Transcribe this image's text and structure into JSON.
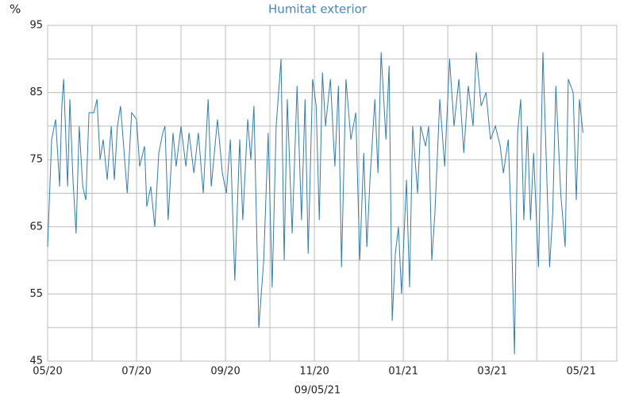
{
  "chart_data": {
    "type": "line",
    "title": "Humitat exterior",
    "y_label": "%",
    "x_label": "09/05/21",
    "series": [
      {
        "name": "Humitat exterior",
        "color": "#2f7db8",
        "x": [
          0,
          0.09,
          0.18,
          0.27,
          0.32,
          0.36,
          0.45,
          0.5,
          0.57,
          0.64,
          0.71,
          0.79,
          0.86,
          0.93,
          1.04,
          1.11,
          1.18,
          1.25,
          1.34,
          1.43,
          1.5,
          1.57,
          1.64,
          1.71,
          1.79,
          1.89,
          2,
          2.07,
          2.18,
          2.23,
          2.32,
          2.41,
          2.5,
          2.59,
          2.64,
          2.71,
          2.82,
          2.89,
          3,
          3.11,
          3.18,
          3.29,
          3.39,
          3.5,
          3.61,
          3.68,
          3.82,
          3.93,
          4.02,
          4.11,
          4.21,
          4.32,
          4.39,
          4.5,
          4.57,
          4.64,
          4.75,
          4.86,
          4.96,
          5.05,
          5.14,
          5.25,
          5.32,
          5.39,
          5.5,
          5.61,
          5.71,
          5.79,
          5.86,
          5.96,
          6.04,
          6.11,
          6.18,
          6.25,
          6.36,
          6.46,
          6.54,
          6.61,
          6.71,
          6.82,
          6.93,
          7.02,
          7.11,
          7.18,
          7.25,
          7.36,
          7.43,
          7.5,
          7.61,
          7.68,
          7.75,
          7.82,
          7.89,
          7.96,
          8.07,
          8.14,
          8.21,
          8.32,
          8.39,
          8.5,
          8.57,
          8.64,
          8.71,
          8.82,
          8.93,
          9.04,
          9.14,
          9.25,
          9.36,
          9.46,
          9.57,
          9.64,
          9.75,
          9.86,
          9.96,
          10.07,
          10.18,
          10.25,
          10.36,
          10.43,
          10.5,
          10.57,
          10.64,
          10.71,
          10.79,
          10.86,
          10.93,
          11.04,
          11.14,
          11.21,
          11.29,
          11.36,
          11.43,
          11.54,
          11.64,
          11.71,
          11.82,
          11.89,
          11.96,
          12.04
        ],
        "values": [
          62,
          78,
          81,
          71,
          83,
          87,
          71,
          84,
          72,
          64,
          80,
          71,
          69,
          82,
          82,
          84,
          75,
          78,
          72,
          80,
          72,
          80,
          83,
          77,
          70,
          82,
          81,
          74,
          77,
          68,
          71,
          65,
          76,
          79,
          80,
          66,
          79,
          74,
          80,
          74,
          79,
          73,
          79,
          70,
          84,
          71,
          81,
          73,
          70,
          78,
          57,
          78,
          66,
          81,
          75,
          83,
          50,
          60,
          79,
          56,
          80,
          90,
          60,
          84,
          64,
          86,
          66,
          84,
          61,
          87,
          83,
          66,
          88,
          80,
          87,
          74,
          86,
          59,
          87,
          78,
          82,
          60,
          76,
          62,
          72,
          84,
          73,
          91,
          78,
          89,
          51,
          61,
          65,
          55,
          72,
          56,
          80,
          70,
          80,
          77,
          80,
          60,
          67,
          84,
          74,
          90,
          80,
          87,
          76,
          86,
          80,
          91,
          83,
          85,
          78,
          80,
          77,
          73,
          78,
          65,
          46,
          79,
          84,
          66,
          80,
          66,
          76,
          59,
          91,
          76,
          59,
          67,
          86,
          70,
          62,
          87,
          85,
          69,
          84,
          79
        ]
      }
    ],
    "xlim": [
      0,
      12.8
    ],
    "xticks": [
      {
        "value": 0,
        "label": "05/20"
      },
      {
        "value": 2,
        "label": "07/20"
      },
      {
        "value": 4,
        "label": "09/20"
      },
      {
        "value": 6,
        "label": "11/20"
      },
      {
        "value": 8,
        "label": "01/21"
      },
      {
        "value": 10,
        "label": "03/21"
      },
      {
        "value": 12,
        "label": "05/21"
      }
    ],
    "xminor": [
      1,
      3,
      5,
      7,
      9,
      11
    ],
    "ylim": [
      45,
      95
    ],
    "yticks": [
      45,
      55,
      65,
      75,
      85,
      95
    ],
    "yminor": [
      50,
      60,
      70,
      80,
      90
    ],
    "grid": true
  }
}
